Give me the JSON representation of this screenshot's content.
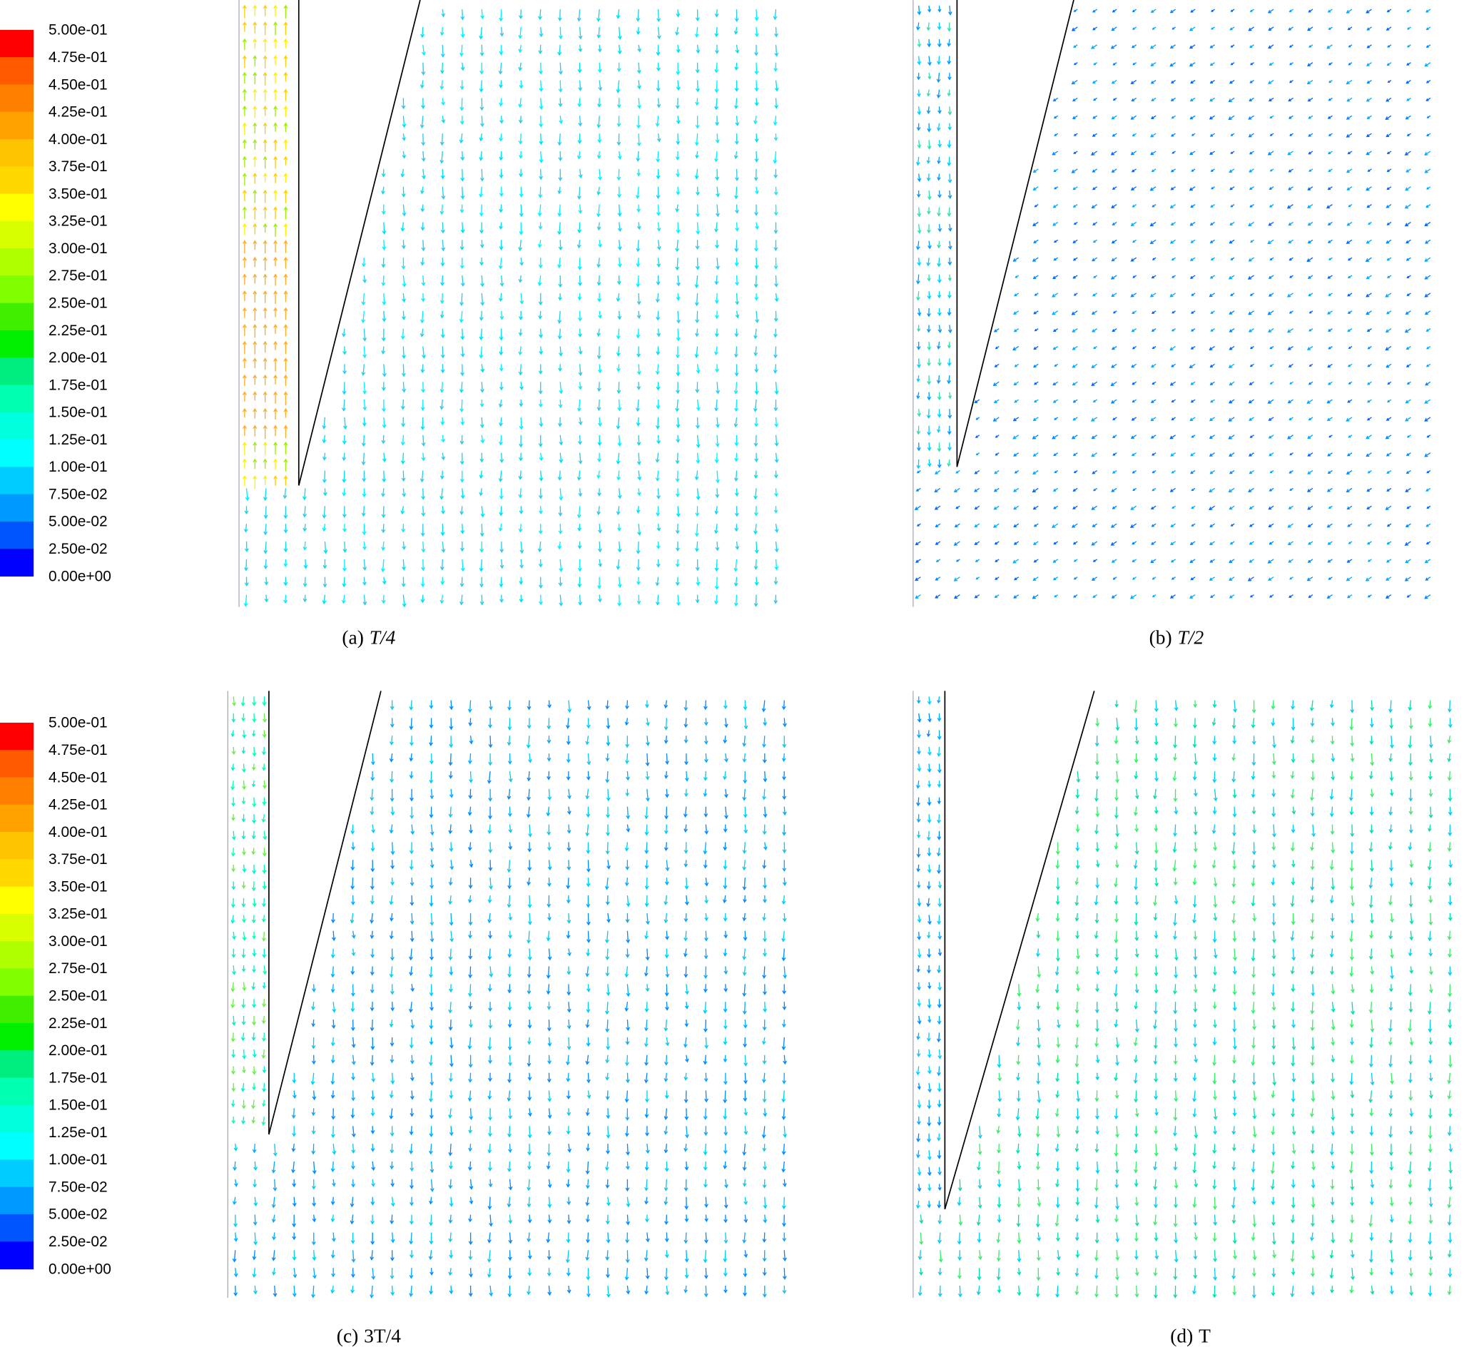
{
  "colorbars": [
    {
      "labels": [
        "5.00e-01",
        "4.75e-01",
        "4.50e-01",
        "4.25e-01",
        "4.00e-01",
        "3.75e-01",
        "3.50e-01",
        "3.25e-01",
        "3.00e-01",
        "2.75e-01",
        "2.50e-01",
        "2.25e-01",
        "2.00e-01",
        "1.75e-01",
        "1.50e-01",
        "1.25e-01",
        "1.00e-01",
        "7.50e-02",
        "5.00e-02",
        "2.50e-02",
        "0.00e+00"
      ],
      "colors": [
        "#ff0000",
        "#ff5a00",
        "#ff8000",
        "#ffa200",
        "#ffc400",
        "#ffd800",
        "#ffff00",
        "#d8ff00",
        "#b0ff00",
        "#80ff00",
        "#40ee00",
        "#00ee00",
        "#00ee80",
        "#00ffb0",
        "#00ffdd",
        "#00ffff",
        "#00ccff",
        "#0099ff",
        "#0055ff",
        "#0000ff"
      ]
    },
    {
      "labels": [
        "5.00e-01",
        "4.75e-01",
        "4.50e-01",
        "4.25e-01",
        "4.00e-01",
        "3.75e-01",
        "3.50e-01",
        "3.25e-01",
        "3.00e-01",
        "2.75e-01",
        "2.50e-01",
        "2.25e-01",
        "2.00e-01",
        "1.75e-01",
        "1.50e-01",
        "1.25e-01",
        "1.00e-01",
        "7.50e-02",
        "5.00e-02",
        "2.50e-02",
        "0.00e+00"
      ],
      "colors": [
        "#ff0000",
        "#ff5a00",
        "#ff8000",
        "#ffa200",
        "#ffc400",
        "#ffd800",
        "#ffff00",
        "#d8ff00",
        "#b0ff00",
        "#80ff00",
        "#40ee00",
        "#00ee00",
        "#00ee80",
        "#00ffb0",
        "#00ffdd",
        "#00ffff",
        "#00ccff",
        "#0099ff",
        "#0055ff",
        "#0000ff"
      ]
    }
  ],
  "panels": [
    {
      "label": "(a)",
      "time": "T/4",
      "italic": true
    },
    {
      "label": "(b)",
      "time": "T/2",
      "italic": true
    },
    {
      "label": "(c)",
      "time": "3T/4",
      "italic": false
    },
    {
      "label": "(d)",
      "time": "T",
      "italic": false
    }
  ]
}
